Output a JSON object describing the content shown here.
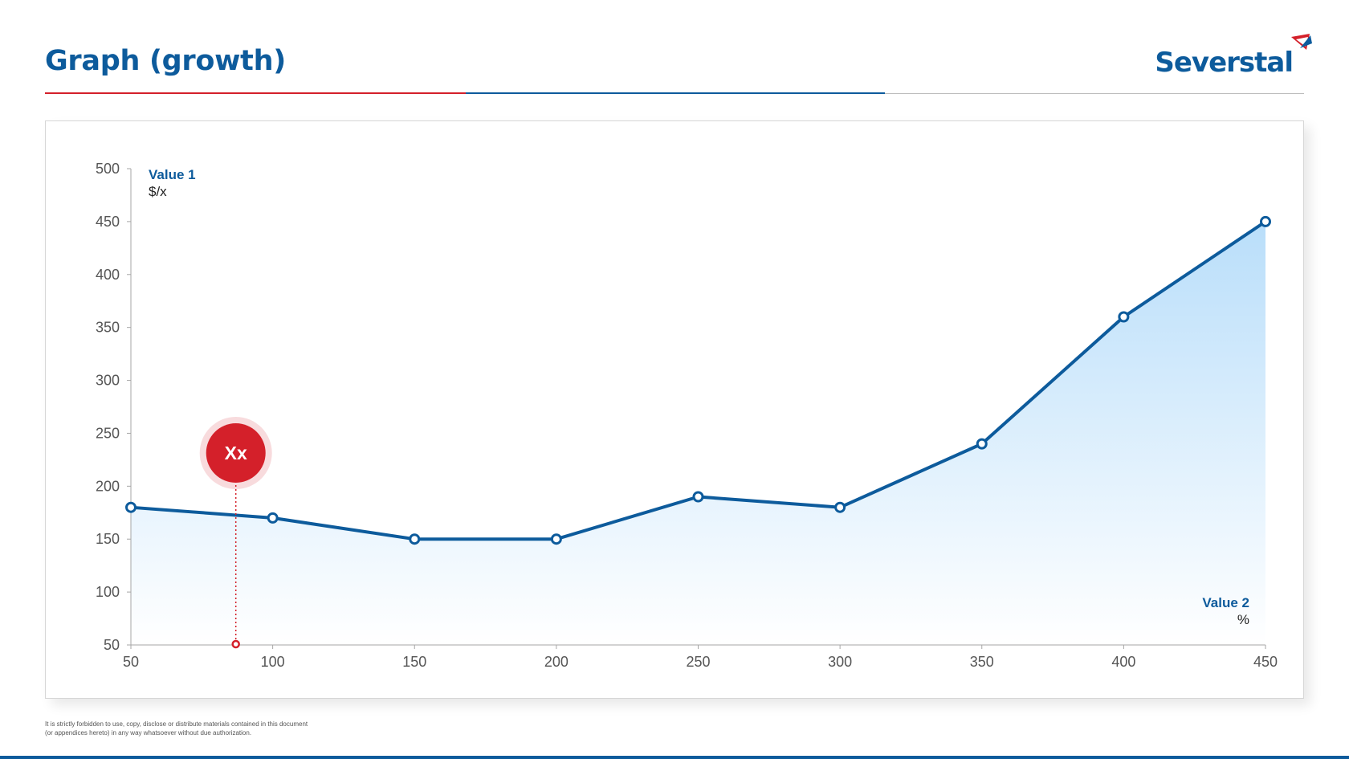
{
  "header": {
    "title": "Graph (growth)",
    "brand": "Severstal",
    "brand_mark_icon": "severstal-logo-icon"
  },
  "colors": {
    "primary_blue": "#0d5b9c",
    "accent_red": "#d4202a",
    "area_fill_top": "#b9defa",
    "area_fill_bottom": "#ffffff"
  },
  "chart_data": {
    "type": "area",
    "title": "",
    "x": [
      50,
      100,
      150,
      200,
      250,
      300,
      350,
      400,
      450
    ],
    "series": [
      {
        "values": [
          180,
          170,
          150,
          150,
          190,
          180,
          240,
          360,
          450
        ]
      }
    ],
    "xlim": [
      50,
      450
    ],
    "ylim": [
      50,
      500
    ],
    "xticks": [
      50,
      100,
      150,
      200,
      250,
      300,
      350,
      400,
      450
    ],
    "yticks": [
      50,
      100,
      150,
      200,
      250,
      300,
      350,
      400,
      450,
      500
    ],
    "ylabel": "Value 1",
    "ylabel_unit": "$/x",
    "xlabel": "Value 2",
    "xlabel_unit": "%",
    "grid": false,
    "annotation": {
      "text": "Xx",
      "x": 87
    }
  },
  "footer": {
    "line1": "It is strictly forbidden to use, copy, disclose or distribute materials contained in this document",
    "line2": "(or appendices hereto) in any way whatsoever without due authorization."
  }
}
